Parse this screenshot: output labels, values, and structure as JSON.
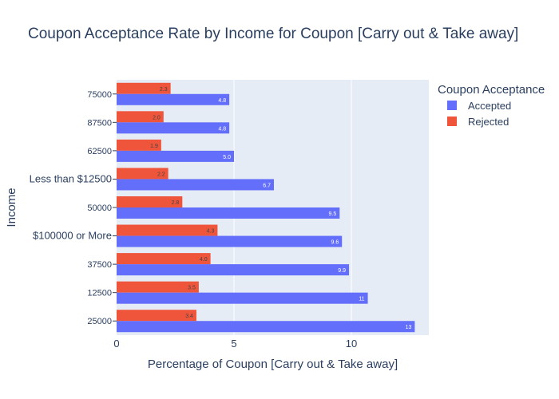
{
  "chart_data": {
    "type": "bar",
    "orientation": "horizontal",
    "title": "Coupon Acceptance Rate by Income for Coupon [Carry out & Take away]",
    "xlabel": "Percentage of Coupon [Carry out & Take away]",
    "ylabel": "Income",
    "xlim": [
      0,
      13.3
    ],
    "x_ticks": [
      0,
      5,
      10
    ],
    "categories": [
      "75000",
      "87500",
      "62500",
      "Less than $12500",
      "50000",
      "$100000 or More",
      "37500",
      "12500",
      "25000"
    ],
    "series": [
      {
        "name": "Accepted",
        "color": "#636efa",
        "values": [
          4.8,
          4.8,
          5.0,
          6.7,
          9.5,
          9.6,
          9.9,
          10.7,
          12.7
        ],
        "labels": [
          "4.8",
          "4.8",
          "5.0",
          "6.7",
          "9.5",
          "9.6",
          "9.9",
          "11",
          "13"
        ]
      },
      {
        "name": "Rejected",
        "color": "#ef553b",
        "values": [
          2.3,
          2.0,
          1.9,
          2.2,
          2.8,
          4.3,
          4.0,
          3.5,
          3.4
        ],
        "labels": [
          "2.3",
          "2.0",
          "1.9",
          "2.2",
          "2.8",
          "4.3",
          "4.0",
          "3.5",
          "3.4"
        ]
      }
    ],
    "legend": {
      "title": "Coupon Acceptance",
      "position": "top-right"
    },
    "grid": true,
    "plot_background": "#e5ecf6"
  }
}
